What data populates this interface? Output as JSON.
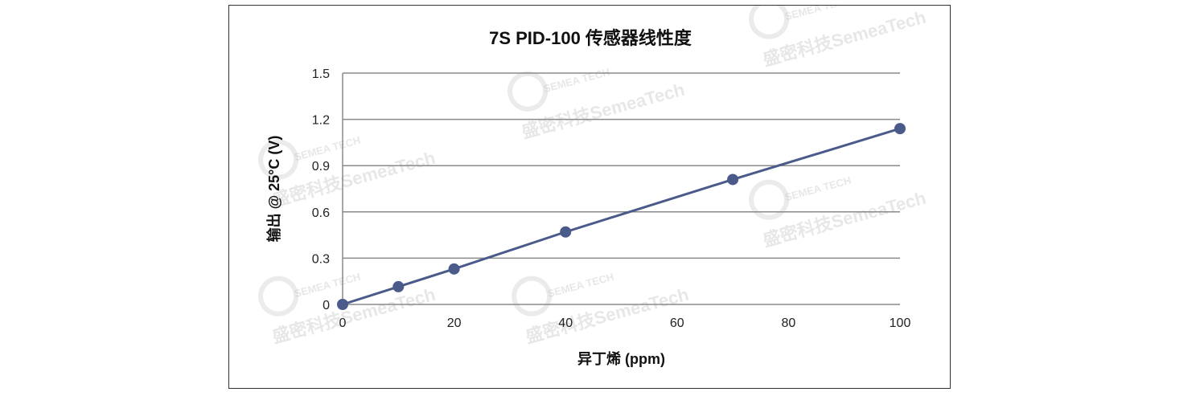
{
  "chart_data": {
    "type": "line",
    "title": "7S PID-100 传感器线性度",
    "xlabel": "异丁烯 (ppm)",
    "ylabel": "输出 @ 25°C (V)",
    "xlim": [
      0,
      100
    ],
    "ylim": [
      0,
      1.5
    ],
    "xticks": [
      "0",
      "20",
      "40",
      "60",
      "80",
      "100"
    ],
    "yticks": [
      "0",
      "0.3",
      "0.6",
      "0.9",
      "1.2",
      "1.5"
    ],
    "grid": true,
    "legend": "none",
    "series": [
      {
        "x": [
          0,
          10,
          20,
          40,
          70,
          100
        ],
        "y": [
          0,
          0.115,
          0.23,
          0.47,
          0.81,
          1.14
        ]
      }
    ],
    "line_color": "#4a5a8a"
  },
  "watermark": {
    "text": "盛密科技SemeaTech",
    "logo_text": "SEMEA TECH"
  }
}
